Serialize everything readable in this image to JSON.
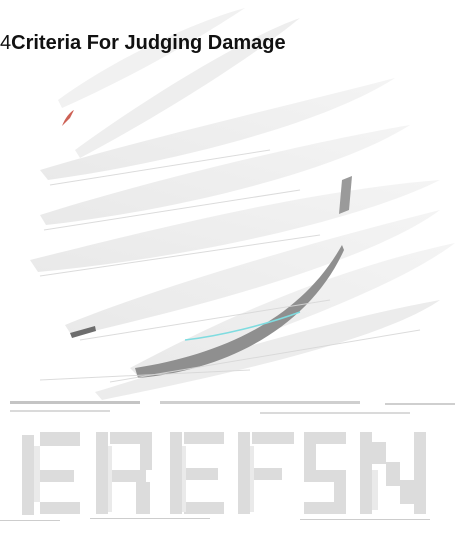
{
  "section": {
    "number": "4",
    "title": "Criteria For Judging Damage"
  },
  "watermark": {
    "icon": "striped-globe-logo-watermark",
    "colors": {
      "stripe_light": "#eeeeee",
      "stripe_mid": "#e4e4e4",
      "accent_gray": "#9a9a9a",
      "accent_dark": "#6d6d6d",
      "accent_red": "#c0392b",
      "accent_cyan": "#7fdce0"
    }
  }
}
